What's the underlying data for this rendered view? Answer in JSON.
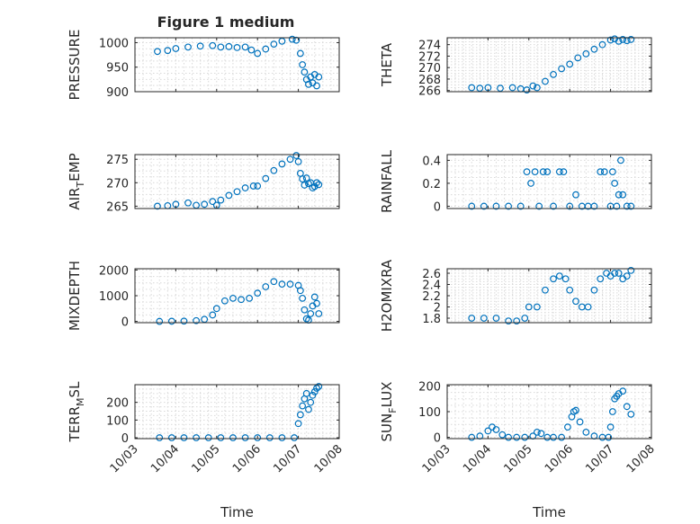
{
  "figure": {
    "title": "Figure 1 medium",
    "xlabel": "Time",
    "x_tick_labels": [
      "10/03",
      "10/04",
      "10/05",
      "10/06",
      "10/07",
      "10/08"
    ],
    "marker_color": "#0072BD"
  },
  "chart_data": [
    {
      "type": "scatter",
      "panel": "left-1",
      "ylabel": "PRESSURE",
      "xlim": [
        3.0,
        8.0
      ],
      "ylim": [
        900,
        1010
      ],
      "yticks": [
        900,
        950,
        1000
      ],
      "grid": "on",
      "show_x_tick_labels": false,
      "x": [
        3.55,
        3.8,
        4.0,
        4.3,
        4.6,
        4.9,
        5.1,
        5.3,
        5.5,
        5.7,
        5.85,
        6.0,
        6.2,
        6.4,
        6.6,
        6.85,
        6.95,
        7.05,
        7.1,
        7.15,
        7.2,
        7.25,
        7.3,
        7.35,
        7.4,
        7.45,
        7.5
      ],
      "y": [
        982,
        984,
        988,
        991,
        993,
        994,
        991,
        992,
        990,
        991,
        985,
        978,
        987,
        997,
        1003,
        1007,
        1005,
        978,
        955,
        940,
        925,
        915,
        930,
        918,
        935,
        912,
        930
      ]
    },
    {
      "type": "scatter",
      "panel": "right-1",
      "ylabel": "THETA",
      "xlim": [
        3.0,
        8.0
      ],
      "ylim": [
        265.8,
        275.2
      ],
      "yticks": [
        266,
        268,
        270,
        272,
        274
      ],
      "grid": "on",
      "show_x_tick_labels": false,
      "x": [
        3.6,
        3.8,
        4.0,
        4.3,
        4.6,
        4.8,
        4.95,
        5.1,
        5.2,
        5.4,
        5.6,
        5.8,
        6.0,
        6.2,
        6.4,
        6.6,
        6.8,
        7.0,
        7.1,
        7.2,
        7.3,
        7.4,
        7.5
      ],
      "y": [
        266.5,
        266.4,
        266.5,
        266.4,
        266.5,
        266.3,
        266.1,
        266.8,
        266.5,
        267.6,
        268.8,
        269.8,
        270.6,
        271.7,
        272.4,
        273.2,
        274.0,
        274.8,
        275.0,
        274.6,
        274.9,
        274.7,
        274.9
      ]
    },
    {
      "type": "scatter",
      "panel": "left-2",
      "ylabel": "AIR_TEMP",
      "xlim": [
        3.0,
        8.0
      ],
      "ylim": [
        264.5,
        276
      ],
      "yticks": [
        265,
        270,
        275
      ],
      "grid": "on",
      "show_x_tick_labels": false,
      "x": [
        3.55,
        3.8,
        4.0,
        4.3,
        4.5,
        4.7,
        4.9,
        5.0,
        5.1,
        5.3,
        5.5,
        5.7,
        5.9,
        6.0,
        6.2,
        6.4,
        6.6,
        6.8,
        6.95,
        7.0,
        7.05,
        7.1,
        7.15,
        7.2,
        7.25,
        7.3,
        7.35,
        7.4,
        7.45,
        7.5
      ],
      "y": [
        265.0,
        265.1,
        265.4,
        265.7,
        265.2,
        265.4,
        266.0,
        265.2,
        266.3,
        267.3,
        268.1,
        268.9,
        269.3,
        269.3,
        270.9,
        272.6,
        274.0,
        275.0,
        275.8,
        274.5,
        272.0,
        270.8,
        269.5,
        271.0,
        269.8,
        270.0,
        268.9,
        269.2,
        270.0,
        269.6
      ]
    },
    {
      "type": "scatter",
      "panel": "right-2",
      "ylabel": "RAINFALL",
      "xlim": [
        3.0,
        8.0
      ],
      "ylim": [
        -0.02,
        0.45
      ],
      "yticks": [
        0,
        0.2,
        0.4
      ],
      "grid": "on",
      "show_x_tick_labels": false,
      "x": [
        3.6,
        3.9,
        4.2,
        4.5,
        4.8,
        4.95,
        5.05,
        5.15,
        5.25,
        5.35,
        5.45,
        5.6,
        5.75,
        5.85,
        6.0,
        6.15,
        6.3,
        6.45,
        6.6,
        6.75,
        6.85,
        7.0,
        7.05,
        7.1,
        7.15,
        7.2,
        7.25,
        7.3,
        7.4,
        7.5
      ],
      "y": [
        0,
        0,
        0,
        0,
        0,
        0.3,
        0.2,
        0.3,
        0,
        0.3,
        0.3,
        0,
        0.3,
        0.3,
        0,
        0.1,
        0,
        0,
        0,
        0.3,
        0.3,
        0,
        0.3,
        0.2,
        0,
        0.1,
        0.4,
        0.1,
        0,
        0
      ]
    },
    {
      "type": "scatter",
      "panel": "left-3",
      "ylabel": "MIXDEPTH",
      "xlim": [
        3.0,
        8.0
      ],
      "ylim": [
        -50,
        2050
      ],
      "yticks": [
        0,
        1000,
        2000
      ],
      "grid": "on",
      "show_x_tick_labels": false,
      "x": [
        3.6,
        3.9,
        4.2,
        4.5,
        4.7,
        4.9,
        5.0,
        5.2,
        5.4,
        5.6,
        5.8,
        6.0,
        6.2,
        6.4,
        6.6,
        6.8,
        7.0,
        7.05,
        7.1,
        7.15,
        7.2,
        7.25,
        7.3,
        7.35,
        7.4,
        7.45,
        7.5
      ],
      "y": [
        0,
        5,
        10,
        30,
        80,
        250,
        500,
        800,
        900,
        850,
        900,
        1100,
        1350,
        1550,
        1450,
        1450,
        1400,
        1200,
        900,
        450,
        100,
        50,
        300,
        600,
        950,
        700,
        300
      ]
    },
    {
      "type": "scatter",
      "panel": "right-3",
      "ylabel": "H2OMIXRA",
      "xlim": [
        3.0,
        8.0
      ],
      "ylim": [
        1.72,
        2.68
      ],
      "yticks": [
        1.8,
        2,
        2.2,
        2.4,
        2.6
      ],
      "grid": "on",
      "show_x_tick_labels": false,
      "x": [
        3.6,
        3.9,
        4.2,
        4.5,
        4.7,
        4.9,
        5.0,
        5.2,
        5.4,
        5.6,
        5.75,
        5.9,
        6.0,
        6.15,
        6.3,
        6.45,
        6.6,
        6.75,
        6.9,
        7.0,
        7.1,
        7.2,
        7.3,
        7.4,
        7.5
      ],
      "y": [
        1.8,
        1.8,
        1.8,
        1.75,
        1.75,
        1.8,
        2.0,
        2.0,
        2.3,
        2.5,
        2.55,
        2.5,
        2.3,
        2.1,
        2.0,
        2.0,
        2.3,
        2.5,
        2.6,
        2.55,
        2.6,
        2.6,
        2.5,
        2.55,
        2.65
      ]
    },
    {
      "type": "scatter",
      "panel": "left-4",
      "ylabel": "TERR_MSL",
      "xlim": [
        3.0,
        8.0
      ],
      "ylim": [
        -5,
        300
      ],
      "yticks": [
        0,
        100,
        200
      ],
      "grid": "on",
      "show_x_tick_labels": true,
      "x": [
        3.6,
        3.9,
        4.2,
        4.5,
        4.8,
        5.1,
        5.4,
        5.7,
        6.0,
        6.3,
        6.6,
        6.9,
        7.0,
        7.05,
        7.1,
        7.15,
        7.2,
        7.25,
        7.3,
        7.35,
        7.4,
        7.45,
        7.5
      ],
      "y": [
        0,
        0,
        0,
        0,
        0,
        0,
        0,
        0,
        0,
        0,
        0,
        0,
        80,
        130,
        180,
        220,
        250,
        160,
        200,
        240,
        260,
        280,
        290
      ]
    },
    {
      "type": "scatter",
      "panel": "right-4",
      "ylabel": "SUN_FLUX",
      "xlim": [
        3.0,
        8.0
      ],
      "ylim": [
        -5,
        205
      ],
      "yticks": [
        0,
        100,
        200
      ],
      "grid": "on",
      "show_x_tick_labels": true,
      "x": [
        3.6,
        3.8,
        4.0,
        4.1,
        4.2,
        4.35,
        4.5,
        4.7,
        4.9,
        5.1,
        5.2,
        5.3,
        5.45,
        5.6,
        5.8,
        5.95,
        6.05,
        6.1,
        6.15,
        6.25,
        6.4,
        6.6,
        6.8,
        6.95,
        7.0,
        7.05,
        7.1,
        7.15,
        7.2,
        7.3,
        7.4,
        7.5
      ],
      "y": [
        0,
        5,
        25,
        40,
        30,
        10,
        0,
        0,
        0,
        5,
        20,
        15,
        0,
        0,
        0,
        40,
        80,
        100,
        105,
        60,
        20,
        5,
        0,
        0,
        40,
        100,
        150,
        160,
        170,
        180,
        120,
        90
      ]
    }
  ]
}
